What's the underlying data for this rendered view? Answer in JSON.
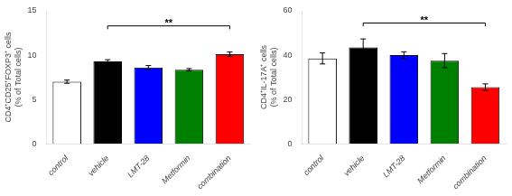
{
  "chart_data": [
    {
      "type": "bar",
      "categories": [
        "control",
        "vehicle",
        "LMT-28",
        "Metformin",
        "combination"
      ],
      "values": [
        7.0,
        9.3,
        8.6,
        8.35,
        10.1
      ],
      "errors": [
        0.18,
        0.18,
        0.22,
        0.13,
        0.25
      ],
      "colors": [
        "#ffffff",
        "#000000",
        "#0000ff",
        "#008000",
        "#ff0000"
      ],
      "ylabel": "CD4⁺CD25⁺FOXP3⁺ cells\n(% of Total cells)",
      "ylim": [
        0,
        15
      ],
      "yticks": [
        0,
        5,
        10,
        15
      ],
      "annotations": [
        {
          "text": "**",
          "x1": "vehicle",
          "x2": "combination",
          "y": 13.3
        }
      ],
      "grid": false
    },
    {
      "type": "bar",
      "categories": [
        "control",
        "vehicle",
        "LMT-28",
        "Metformin",
        "combination"
      ],
      "values": [
        38.5,
        43.5,
        40.0,
        37.5,
        25.5
      ],
      "errors": [
        2.5,
        3.8,
        1.5,
        3.2,
        1.5
      ],
      "colors": [
        "#ffffff",
        "#000000",
        "#0000ff",
        "#008000",
        "#ff0000"
      ],
      "ylabel": "CD4⁺IL-17A⁺ cells\n(% of Total cells)",
      "ylim": [
        0,
        60
      ],
      "yticks": [
        0,
        20,
        40,
        60
      ],
      "annotations": [
        {
          "text": "**",
          "x1": "vehicle",
          "x2": "combination",
          "y": 54.5
        }
      ],
      "grid": false
    }
  ]
}
